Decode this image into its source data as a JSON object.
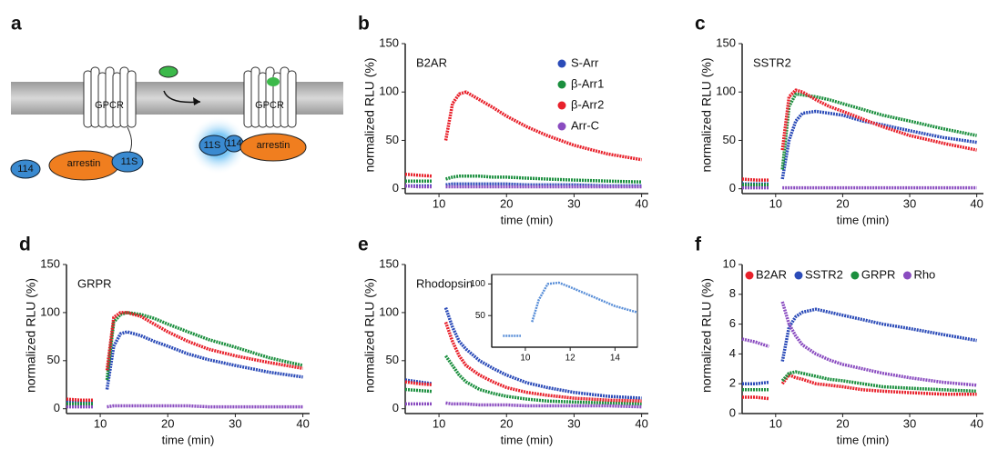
{
  "diagram": {
    "panel": "a",
    "labels": [
      "GPCR",
      "GPCR",
      "114",
      "arrestin",
      "11S",
      "11S",
      "114",
      "arrestin"
    ]
  },
  "chart_data": [
    {
      "panel": "b",
      "type": "line",
      "title": "B2AR",
      "xlabel": "time (min)",
      "ylabel": "normalized RLU (%)",
      "x": [
        5,
        7,
        9,
        10,
        11,
        12,
        13,
        14,
        16,
        18,
        20,
        23,
        26,
        30,
        35,
        40
      ],
      "xlim": [
        5,
        41
      ],
      "xticks": [
        10,
        20,
        30,
        40
      ],
      "ylim": [
        -5,
        150
      ],
      "yticks": [
        0,
        50,
        100,
        150
      ],
      "legend": "upper right",
      "series": [
        {
          "name": "S-Arr",
          "color": "#2b4bb8",
          "values": [
            3,
            3,
            3,
            null,
            4,
            5,
            5,
            5,
            5,
            5,
            5,
            4,
            4,
            4,
            3,
            3
          ]
        },
        {
          "name": "β-Arr1",
          "color": "#1b8f3e",
          "values": [
            8,
            8,
            8,
            null,
            10,
            12,
            13,
            13,
            13,
            12,
            12,
            11,
            10,
            9,
            8,
            7
          ]
        },
        {
          "name": "β-Arr2",
          "color": "#e8212b",
          "values": [
            15,
            14,
            13,
            null,
            50,
            88,
            98,
            100,
            92,
            84,
            75,
            64,
            55,
            45,
            36,
            30
          ]
        },
        {
          "name": "Arr-C",
          "color": "#8a4cc0",
          "values": [
            3,
            2,
            2,
            null,
            2,
            2,
            2,
            2,
            2,
            2,
            2,
            2,
            2,
            2,
            2,
            2
          ]
        }
      ]
    },
    {
      "panel": "c",
      "type": "line",
      "title": "SSTR2",
      "xlabel": "time (min)",
      "ylabel": "normalized RLU (%)",
      "x": [
        5,
        7,
        9,
        10,
        11,
        12,
        13,
        14,
        16,
        18,
        20,
        23,
        26,
        30,
        35,
        40
      ],
      "xlim": [
        5,
        41
      ],
      "xticks": [
        10,
        20,
        30,
        40
      ],
      "ylim": [
        -5,
        150
      ],
      "yticks": [
        0,
        50,
        100,
        150
      ],
      "series": [
        {
          "color": "#2b4bb8",
          "values": [
            5,
            5,
            5,
            null,
            10,
            50,
            70,
            78,
            80,
            78,
            76,
            70,
            66,
            60,
            53,
            48
          ]
        },
        {
          "color": "#1b8f3e",
          "values": [
            4,
            4,
            4,
            null,
            20,
            85,
            98,
            97,
            95,
            92,
            88,
            82,
            76,
            70,
            62,
            55
          ]
        },
        {
          "color": "#e8212b",
          "values": [
            10,
            9,
            9,
            null,
            40,
            95,
            102,
            100,
            92,
            85,
            80,
            72,
            64,
            55,
            47,
            40
          ]
        },
        {
          "color": "#8a4cc0",
          "values": [
            1,
            1,
            1,
            null,
            1,
            1,
            1,
            1,
            1,
            1,
            1,
            1,
            1,
            1,
            1,
            1
          ]
        }
      ]
    },
    {
      "panel": "d",
      "type": "line",
      "title": "GRPR",
      "xlabel": "time (min)",
      "ylabel": "normalized RLU (%)",
      "x": [
        5,
        7,
        9,
        10,
        11,
        12,
        13,
        14,
        16,
        18,
        20,
        23,
        26,
        30,
        35,
        40
      ],
      "xlim": [
        5,
        41
      ],
      "xticks": [
        10,
        20,
        30,
        40
      ],
      "ylim": [
        -5,
        150
      ],
      "yticks": [
        0,
        50,
        100,
        150
      ],
      "series": [
        {
          "color": "#2b4bb8",
          "values": [
            8,
            7,
            7,
            null,
            20,
            65,
            78,
            80,
            76,
            70,
            65,
            57,
            51,
            45,
            38,
            33
          ]
        },
        {
          "color": "#1b8f3e",
          "values": [
            5,
            5,
            5,
            null,
            30,
            90,
            98,
            100,
            98,
            94,
            88,
            80,
            72,
            64,
            53,
            45
          ]
        },
        {
          "color": "#e8212b",
          "values": [
            10,
            9,
            9,
            null,
            40,
            95,
            100,
            100,
            96,
            88,
            80,
            70,
            62,
            55,
            48,
            42
          ]
        },
        {
          "color": "#8a4cc0",
          "values": [
            2,
            2,
            2,
            null,
            2,
            3,
            3,
            3,
            3,
            3,
            3,
            3,
            2,
            2,
            2,
            2
          ]
        }
      ]
    },
    {
      "panel": "e",
      "type": "line",
      "title": "Rhodopsin",
      "xlabel": "time (min)",
      "ylabel": "normalized RLU (%)",
      "x": [
        5,
        7,
        9,
        10,
        11,
        12,
        13,
        14,
        16,
        18,
        20,
        23,
        26,
        30,
        35,
        40
      ],
      "xlim": [
        5,
        41
      ],
      "xticks": [
        10,
        20,
        30,
        40
      ],
      "ylim": [
        -5,
        150
      ],
      "yticks": [
        0,
        50,
        100,
        150
      ],
      "series": [
        {
          "color": "#2b4bb8",
          "values": [
            30,
            28,
            26,
            null,
            105,
            85,
            70,
            62,
            50,
            42,
            35,
            27,
            22,
            17,
            13,
            11
          ]
        },
        {
          "color": "#1b8f3e",
          "values": [
            20,
            19,
            18,
            null,
            55,
            45,
            35,
            28,
            20,
            16,
            13,
            10,
            8,
            7,
            6,
            5
          ]
        },
        {
          "color": "#e8212b",
          "values": [
            28,
            26,
            25,
            null,
            90,
            70,
            55,
            45,
            35,
            28,
            22,
            17,
            14,
            11,
            9,
            8
          ]
        },
        {
          "color": "#8a4cc0",
          "values": [
            5,
            5,
            5,
            null,
            6,
            5,
            5,
            5,
            4,
            4,
            4,
            3,
            3,
            3,
            3,
            2
          ]
        }
      ]
    },
    {
      "panel": "f",
      "type": "line",
      "xlabel": "time (min)",
      "ylabel": "normalized RLU (%)",
      "x": [
        5,
        7,
        9,
        10,
        11,
        12,
        13,
        14,
        16,
        18,
        20,
        23,
        26,
        30,
        35,
        40
      ],
      "xlim": [
        5,
        41
      ],
      "xticks": [
        10,
        20,
        30,
        40
      ],
      "ylim": [
        0,
        10
      ],
      "yticks": [
        0,
        2,
        4,
        6,
        8,
        10
      ],
      "legend": "top",
      "series": [
        {
          "name": "B2AR",
          "color": "#e8212b",
          "values": [
            1.1,
            1.1,
            1.0,
            null,
            2.0,
            2.6,
            2.4,
            2.3,
            2.0,
            1.9,
            1.8,
            1.6,
            1.5,
            1.4,
            1.3,
            1.3
          ]
        },
        {
          "name": "SSTR2",
          "color": "#2b4bb8",
          "values": [
            2.0,
            2.0,
            2.1,
            null,
            3.5,
            5.8,
            6.5,
            6.8,
            7.0,
            6.8,
            6.6,
            6.3,
            6.0,
            5.7,
            5.3,
            4.9
          ]
        },
        {
          "name": "GRPR",
          "color": "#1b8f3e",
          "values": [
            1.6,
            1.6,
            1.6,
            null,
            2.2,
            2.7,
            2.8,
            2.7,
            2.5,
            2.3,
            2.2,
            2.0,
            1.8,
            1.7,
            1.6,
            1.5
          ]
        },
        {
          "name": "Rho",
          "color": "#8a4cc0",
          "values": [
            5.0,
            4.8,
            4.5,
            null,
            7.5,
            6.0,
            5.2,
            4.6,
            4.0,
            3.6,
            3.3,
            3.0,
            2.7,
            2.4,
            2.1,
            1.9
          ]
        }
      ]
    },
    {
      "type": "line",
      "x": [
        9,
        9.5,
        9.8,
        10,
        10.3,
        10.6,
        11,
        11.5,
        12,
        13,
        14,
        15
      ],
      "xlim": [
        8.5,
        15
      ],
      "xticks": [
        10,
        12,
        14
      ],
      "ylim": [
        0,
        115
      ],
      "yticks": [
        50,
        100
      ],
      "series": [
        {
          "color": "#5a8fd8",
          "values": [
            18,
            18,
            18,
            null,
            40,
            75,
            100,
            102,
            95,
            80,
            65,
            55
          ]
        }
      ]
    }
  ]
}
